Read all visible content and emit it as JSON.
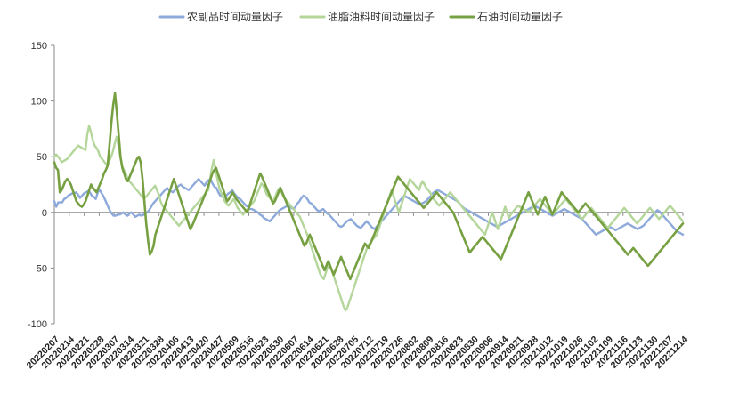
{
  "chart_data": {
    "type": "line",
    "title": "",
    "xlabel": "",
    "ylabel": "",
    "ylim": [
      -100,
      150
    ],
    "yticks": [
      150,
      100,
      50,
      0,
      -50,
      -100
    ],
    "grid": false,
    "legend_position": "top-center",
    "x_tick_labels": [
      "20220207",
      "20220214",
      "20220221",
      "20220228",
      "20220307",
      "20220314",
      "20220321",
      "20220328",
      "20220406",
      "20220413",
      "20220420",
      "20220427",
      "20220509",
      "20220516",
      "20220523",
      "20220530",
      "20220607",
      "20220614",
      "20220621",
      "20220628",
      "20220705",
      "20220712",
      "20220719",
      "20220726",
      "20220802",
      "20220809",
      "20220816",
      "20220823",
      "20220830",
      "20220906",
      "20220914",
      "20220921",
      "20220928",
      "20221012",
      "20221019",
      "20221026",
      "20221102",
      "20221109",
      "20221116",
      "20221123",
      "20221130",
      "20221207",
      "20221214"
    ],
    "series": [
      {
        "name": "农副品时间动量因子",
        "color": "#8eaadb",
        "values": [
          10,
          5,
          9,
          9,
          9,
          12,
          13,
          15,
          16,
          17,
          17,
          18,
          16,
          13,
          15,
          17,
          18,
          19,
          18,
          15,
          14,
          12,
          18,
          20,
          17,
          14,
          10,
          6,
          2,
          -1,
          -3,
          -3,
          -2,
          -2,
          -1,
          0,
          -2,
          -3,
          -1,
          0,
          -2,
          -4,
          -3,
          -2,
          -3,
          -2,
          -1,
          0,
          2,
          5,
          8,
          10,
          12,
          14,
          16,
          18,
          20,
          22,
          20,
          19,
          18,
          20,
          22,
          24,
          25,
          23,
          22,
          21,
          20,
          22,
          24,
          26,
          28,
          30,
          28,
          26,
          24,
          27,
          29,
          30,
          26,
          23,
          22,
          18,
          15,
          14,
          13,
          15,
          17,
          18,
          20,
          17,
          15,
          13,
          12,
          10,
          8,
          6,
          5,
          3,
          3,
          2,
          1,
          0,
          -2,
          -3,
          -5,
          -6,
          -7,
          -8,
          -6,
          -4,
          -2,
          0,
          2,
          3,
          4,
          5,
          6,
          5,
          4,
          3,
          5,
          8,
          10,
          13,
          15,
          14,
          12,
          9,
          8,
          6,
          4,
          2,
          1,
          2,
          3,
          1,
          -1,
          -2,
          -4,
          -6,
          -8,
          -10,
          -12,
          -13,
          -12,
          -10,
          -8,
          -7,
          -6,
          -8,
          -10,
          -12,
          -13,
          -14,
          -12,
          -10,
          -8,
          -10,
          -12,
          -14,
          -15,
          -13,
          -11,
          -9,
          -7,
          -5,
          -3,
          -1,
          1,
          3,
          5,
          7,
          9,
          11,
          13,
          15,
          14,
          13,
          12,
          11,
          10,
          9,
          8,
          7,
          8,
          9,
          10,
          12,
          14,
          16,
          18,
          19,
          20,
          19,
          18,
          17,
          16,
          15,
          14,
          13,
          12,
          11,
          10,
          8,
          6,
          4,
          3,
          2,
          1,
          0,
          -1,
          -2,
          -3,
          -4,
          -5,
          -6,
          -7,
          -8,
          -9,
          -10,
          -11,
          -12,
          -13,
          -12,
          -11,
          -10,
          -9,
          -8,
          -7,
          -6,
          -5,
          -4,
          -3,
          -2,
          -1,
          0,
          1,
          2,
          3,
          4,
          5,
          6,
          5,
          4,
          3,
          2,
          1,
          0,
          -1,
          -2,
          -3,
          -2,
          -1,
          0,
          1,
          2,
          3,
          2,
          1,
          0,
          -1,
          -2,
          -3,
          -4,
          -5,
          -6,
          -8,
          -10,
          -12,
          -14,
          -16,
          -18,
          -20,
          -19,
          -18,
          -17,
          -16,
          -15,
          -14,
          -13,
          -14,
          -15,
          -16,
          -15,
          -14,
          -13,
          -12,
          -11,
          -10,
          -11,
          -12,
          -13,
          -14,
          -15,
          -14,
          -13,
          -12,
          -10,
          -8,
          -6,
          -4,
          -2,
          0,
          2,
          1,
          -1,
          -3,
          -5,
          -7,
          -9,
          -11,
          -13,
          -15,
          -17,
          -18,
          -19,
          -20
        ]
      },
      {
        "name": "油脂油料时间动量因子",
        "color": "#b4d69b",
        "values": [
          50,
          52,
          50,
          48,
          45,
          46,
          47,
          48,
          50,
          52,
          54,
          56,
          58,
          60,
          59,
          58,
          57,
          56,
          70,
          78,
          72,
          65,
          60,
          58,
          55,
          50,
          48,
          46,
          44,
          42,
          46,
          50,
          55,
          62,
          68,
          60,
          50,
          42,
          38,
          35,
          30,
          28,
          26,
          24,
          22,
          20,
          18,
          16,
          14,
          12,
          14,
          16,
          18,
          20,
          22,
          24,
          20,
          16,
          10,
          6,
          4,
          2,
          0,
          -2,
          -4,
          -6,
          -8,
          -10,
          -12,
          -10,
          -8,
          -6,
          -4,
          -2,
          0,
          2,
          4,
          6,
          8,
          10,
          12,
          14,
          16,
          18,
          20,
          30,
          40,
          47,
          38,
          30,
          22,
          18,
          14,
          10,
          8,
          6,
          8,
          10,
          12,
          8,
          4,
          2,
          0,
          -2,
          0,
          2,
          4,
          6,
          8,
          10,
          14,
          18,
          22,
          26,
          24,
          20,
          16,
          14,
          12,
          10,
          12,
          16,
          20,
          22,
          18,
          14,
          12,
          10,
          8,
          6,
          4,
          2,
          0,
          -2,
          -4,
          -8,
          -12,
          -16,
          -20,
          -25,
          -30,
          -35,
          -40,
          -45,
          -50,
          -55,
          -58,
          -60,
          -55,
          -50,
          -45,
          -50,
          -55,
          -60,
          -65,
          -70,
          -75,
          -80,
          -85,
          -88,
          -85,
          -80,
          -75,
          -70,
          -65,
          -60,
          -55,
          -50,
          -45,
          -40,
          -35,
          -30,
          -28,
          -26,
          -24,
          -22,
          -20,
          -15,
          -10,
          -5,
          0,
          5,
          10,
          15,
          20,
          15,
          10,
          5,
          0,
          5,
          10,
          15,
          20,
          25,
          30,
          28,
          26,
          24,
          22,
          20,
          25,
          28,
          25,
          22,
          20,
          18,
          15,
          12,
          10,
          8,
          6,
          8,
          10,
          12,
          14,
          16,
          18,
          16,
          14,
          12,
          10,
          8,
          6,
          4,
          2,
          0,
          -2,
          -4,
          -6,
          -8,
          -10,
          -12,
          -14,
          -16,
          -18,
          -20,
          -15,
          -10,
          -5,
          0,
          -5,
          -10,
          -15,
          -10,
          -5,
          0,
          5,
          0,
          -5,
          -2,
          0,
          2,
          4,
          6,
          5,
          4,
          3,
          2,
          1,
          0,
          2,
          4,
          6,
          8,
          10,
          12,
          10,
          8,
          6,
          4,
          2,
          0,
          -2,
          0,
          2,
          4,
          6,
          8,
          10,
          12,
          10,
          8,
          6,
          4,
          2,
          0,
          -2,
          -4,
          -6,
          -4,
          -2,
          0,
          2,
          4,
          2,
          0,
          -2,
          -4,
          -6,
          -8,
          -10,
          -12,
          -14,
          -12,
          -10,
          -8,
          -6,
          -4,
          -2,
          0,
          2,
          4,
          2,
          0,
          -2,
          -4,
          -6,
          -8,
          -10,
          -8,
          -6,
          -4,
          -2,
          0,
          2,
          4,
          2,
          0,
          -2,
          -4,
          -6,
          -4,
          -2,
          0,
          2,
          4,
          6,
          4,
          2,
          0,
          -2,
          -4,
          -6,
          -8
        ]
      },
      {
        "name": "石油时间动量因子",
        "color": "#76a041",
        "values": [
          45,
          40,
          38,
          18,
          20,
          24,
          28,
          30,
          28,
          25,
          20,
          15,
          10,
          8,
          6,
          5,
          7,
          10,
          15,
          20,
          25,
          22,
          20,
          18,
          22,
          26,
          30,
          35,
          38,
          42,
          60,
          80,
          96,
          107,
          90,
          70,
          50,
          40,
          35,
          30,
          28,
          32,
          36,
          40,
          44,
          48,
          50,
          45,
          30,
          10,
          -10,
          -25,
          -38,
          -35,
          -30,
          -20,
          -15,
          -10,
          -5,
          0,
          5,
          10,
          15,
          20,
          25,
          30,
          25,
          20,
          15,
          10,
          5,
          0,
          -5,
          -10,
          -15,
          -12,
          -8,
          -4,
          0,
          4,
          8,
          12,
          16,
          20,
          25,
          30,
          35,
          38,
          40,
          35,
          30,
          25,
          20,
          15,
          10,
          12,
          15,
          18,
          15,
          12,
          10,
          8,
          6,
          4,
          2,
          0,
          5,
          10,
          15,
          20,
          25,
          30,
          35,
          32,
          28,
          24,
          20,
          16,
          12,
          8,
          10,
          14,
          18,
          22,
          18,
          14,
          10,
          6,
          2,
          -2,
          -6,
          -10,
          -14,
          -18,
          -22,
          -26,
          -30,
          -28,
          -24,
          -20,
          -24,
          -28,
          -32,
          -36,
          -40,
          -44,
          -48,
          -52,
          -48,
          -44,
          -48,
          -52,
          -56,
          -52,
          -48,
          -44,
          -40,
          -44,
          -48,
          -52,
          -56,
          -60,
          -56,
          -52,
          -48,
          -44,
          -40,
          -36,
          -32,
          -28,
          -30,
          -32,
          -28,
          -24,
          -20,
          -16,
          -12,
          -8,
          -4,
          0,
          4,
          8,
          12,
          16,
          20,
          24,
          28,
          32,
          30,
          28,
          26,
          24,
          22,
          20,
          18,
          16,
          14,
          12,
          10,
          8,
          6,
          4,
          6,
          8,
          10,
          12,
          14,
          16,
          18,
          16,
          14,
          12,
          10,
          8,
          6,
          4,
          2,
          0,
          -4,
          -8,
          -12,
          -16,
          -20,
          -24,
          -28,
          -32,
          -36,
          -34,
          -32,
          -30,
          -28,
          -26,
          -24,
          -22,
          -24,
          -26,
          -28,
          -30,
          -32,
          -34,
          -36,
          -38,
          -40,
          -42,
          -38,
          -34,
          -30,
          -26,
          -22,
          -18,
          -14,
          -10,
          -6,
          -2,
          2,
          6,
          10,
          14,
          18,
          14,
          10,
          6,
          2,
          -2,
          2,
          6,
          10,
          14,
          10,
          6,
          2,
          -2,
          2,
          6,
          10,
          14,
          18,
          16,
          14,
          12,
          10,
          8,
          6,
          4,
          2,
          0,
          2,
          4,
          6,
          8,
          6,
          4,
          2,
          0,
          -2,
          -4,
          -6,
          -8,
          -10,
          -12,
          -14,
          -16,
          -18,
          -20,
          -22,
          -24,
          -26,
          -28,
          -30,
          -32,
          -34,
          -36,
          -38,
          -36,
          -34,
          -32,
          -34,
          -36,
          -38,
          -40,
          -42,
          -44,
          -46,
          -48,
          -46,
          -44,
          -42,
          -40,
          -38,
          -36,
          -34,
          -32,
          -30,
          -28,
          -26,
          -24,
          -22,
          -20,
          -18,
          -16,
          -14,
          -12,
          -10
        ]
      }
    ]
  }
}
